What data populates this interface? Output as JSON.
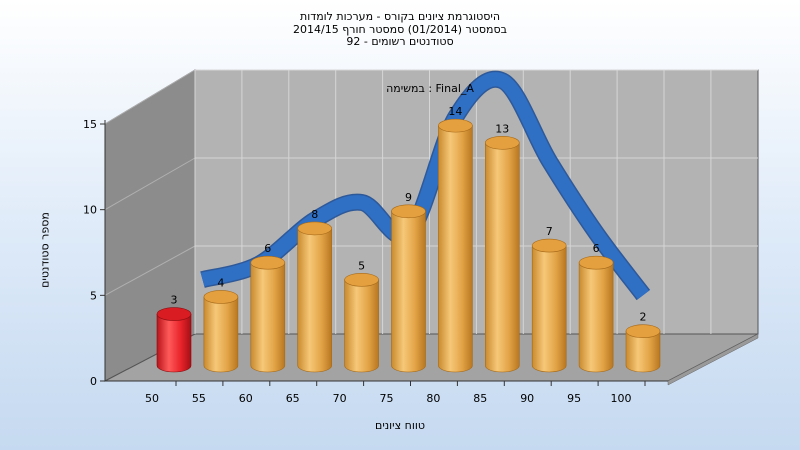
{
  "chart_data": {
    "type": "bar",
    "title_lines": [
      "היסטוגרמת ציונים בקורס - מערכות לומדות",
      "בסמסטר  (01/2014)  סמסטר חורף  2014/15",
      "סטודנטים רשומים - 92"
    ],
    "annotation": "במשימה : Final_A",
    "xlabel": "טווח ציונים",
    "ylabel": "מספר סטודנטים",
    "categories": [
      "50",
      "55",
      "60",
      "65",
      "70",
      "75",
      "80",
      "85",
      "90",
      "95",
      "100"
    ],
    "values": [
      3,
      4,
      6,
      8,
      5,
      9,
      14,
      13,
      7,
      6,
      2
    ],
    "y_ticks": [
      0,
      5,
      10,
      15
    ],
    "ylim": [
      0,
      15
    ],
    "highlight_index": 0,
    "colors": {
      "bar": "#e8a94c",
      "highlight_bar": "#e8242a",
      "curve": "#2f6fc4",
      "plot_back": "#b3b3b3",
      "plot_side": "#8c8c8c"
    },
    "curve": {
      "x": [
        54,
        60,
        66,
        71,
        76,
        81,
        86,
        91,
        96,
        101
      ],
      "y": [
        5.1,
        6.0,
        8.6,
        9.6,
        7.8,
        14.6,
        16.7,
        12.0,
        7.8,
        4.2
      ]
    }
  }
}
